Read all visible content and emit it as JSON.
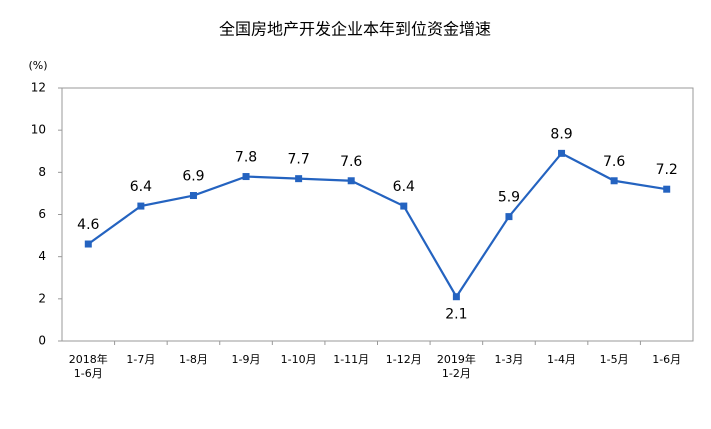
{
  "chart_data": {
    "type": "line",
    "title": "全国房地产开发企业本年到位资金增速",
    "y_label": "(%)",
    "categories": [
      "2018年\n1-6月",
      "1-7月",
      "1-8月",
      "1-9月",
      "1-10月",
      "1-11月",
      "1-12月",
      "2019年\n1-2月",
      "1-3月",
      "1-4月",
      "1-5月",
      "1-6月"
    ],
    "values": [
      4.6,
      6.4,
      6.9,
      7.8,
      7.7,
      7.6,
      6.4,
      2.1,
      5.9,
      8.9,
      7.6,
      7.2
    ],
    "color": "#2463c0",
    "ylim": [
      0,
      12
    ],
    "yticks": [
      0,
      2,
      4,
      6,
      8,
      10,
      12
    ],
    "grid": false
  }
}
